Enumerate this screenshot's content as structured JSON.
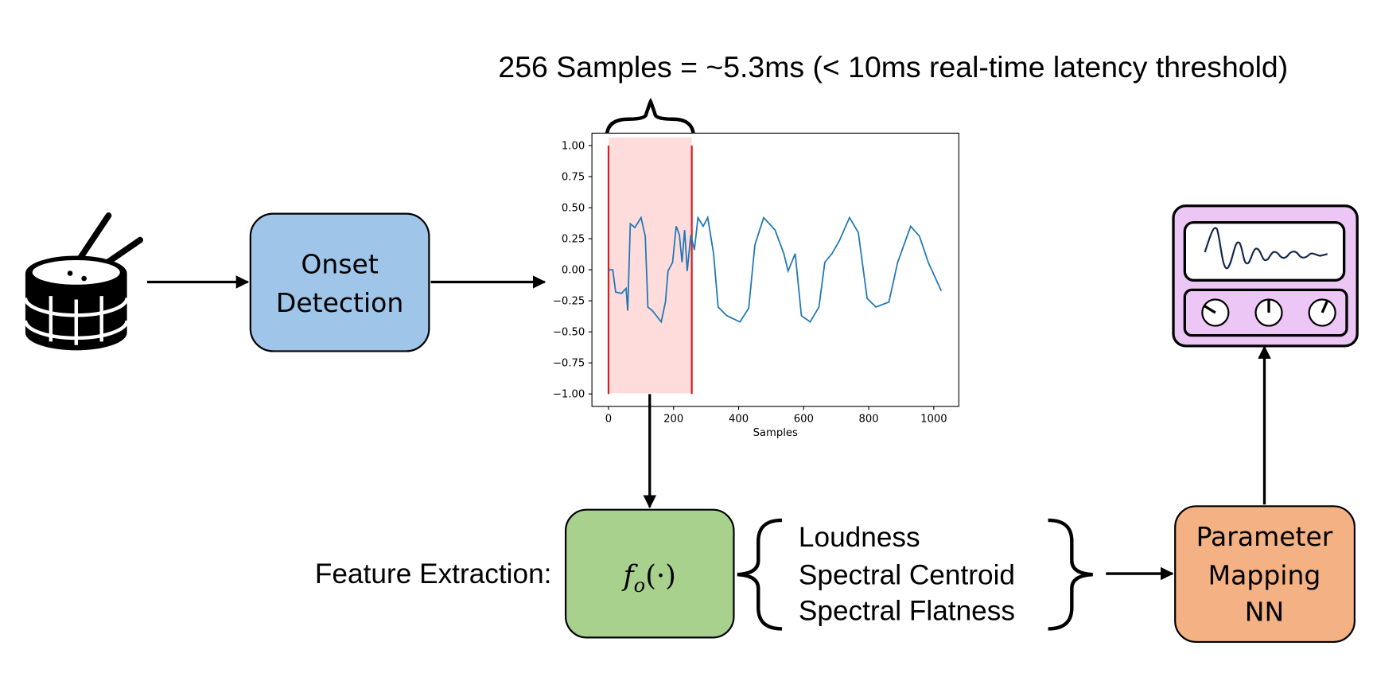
{
  "annotation": "256 Samples = ~5.3ms (< 10ms real-time latency threshold)",
  "nodes": {
    "onset": [
      "Onset",
      "Detection"
    ],
    "feature_label": "Feature Extraction:",
    "function": {
      "symbol": "f",
      "subscript": "o",
      "args": "(·)"
    },
    "features": [
      "Loudness",
      "Spectral Centroid",
      "Spectral Flatness"
    ],
    "mapping": [
      "Parameter",
      "Mapping",
      "NN"
    ]
  },
  "chart_data": {
    "type": "line",
    "xlabel": "Samples",
    "color": "#1f77b4",
    "x": [
      0,
      13,
      22,
      40,
      54,
      59,
      67,
      81,
      100,
      113,
      121,
      135,
      162,
      175,
      183,
      197,
      208,
      218,
      226,
      234,
      242,
      253,
      264,
      275,
      291,
      305,
      323,
      337,
      364,
      404,
      431,
      450,
      477,
      512,
      539,
      552,
      574,
      593,
      620,
      647,
      665,
      687,
      709,
      741,
      768,
      795,
      822,
      862,
      889,
      929,
      956,
      983,
      1023
    ],
    "values": [
      0,
      0,
      -0.18,
      -0.19,
      -0.15,
      -0.33,
      0.37,
      0.34,
      0.42,
      0.27,
      -0.3,
      -0.33,
      -0.42,
      -0.26,
      -0.01,
      0.06,
      0.35,
      0.28,
      0.06,
      0.32,
      -0.01,
      0.28,
      0.16,
      0.42,
      0.35,
      0.42,
      0.13,
      -0.3,
      -0.37,
      -0.42,
      -0.31,
      0.2,
      0.42,
      0.32,
      0.13,
      -0.01,
      0.13,
      -0.37,
      -0.42,
      -0.3,
      0.06,
      0.13,
      0.23,
      0.42,
      0.3,
      -0.23,
      -0.3,
      -0.26,
      0.06,
      0.35,
      0.27,
      0.06,
      -0.17
    ],
    "xlim": [
      -51,
      1077
    ],
    "ylim": [
      -1.1,
      1.1
    ],
    "xticks": [
      0,
      200,
      400,
      600,
      800,
      1000
    ],
    "yticks": [
      {
        "value": 1,
        "label": "1.00"
      },
      {
        "value": 0.75,
        "label": "0.75"
      },
      {
        "value": 0.5,
        "label": "0.50"
      },
      {
        "value": 0.25,
        "label": "0.25"
      },
      {
        "value": 0,
        "label": "0.00"
      },
      {
        "value": -0.25,
        "label": "−0.25"
      },
      {
        "value": -0.5,
        "label": "−0.50"
      },
      {
        "value": -0.75,
        "label": "−0.75"
      },
      {
        "value": -1,
        "label": "−1.00"
      }
    ],
    "highlight": {
      "range": [
        0,
        256
      ],
      "fill": "#ffdcdc",
      "edge": "#d62020"
    }
  }
}
